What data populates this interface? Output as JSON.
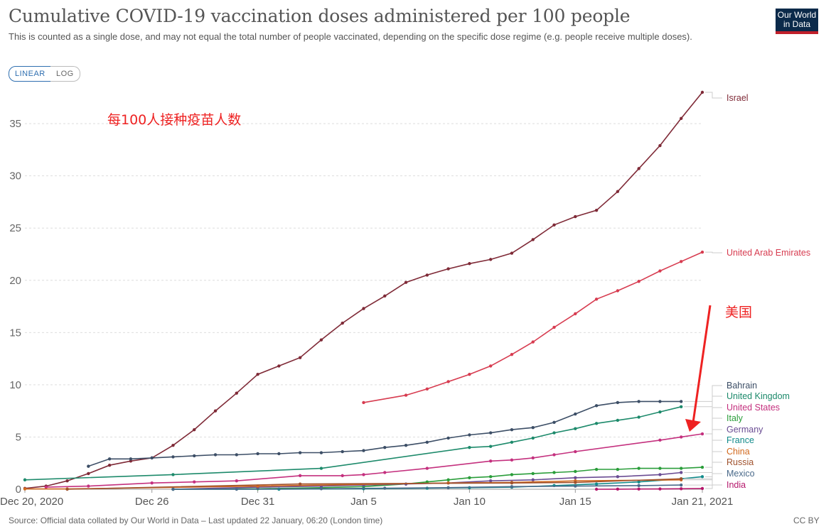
{
  "header": {
    "title": "Cumulative COVID-19 vaccination doses administered per 100 people",
    "subtitle": "This is counted as a single dose, and may not equal the total number of people vaccinated, depending on the specific dose regime (e.g. people receive multiple doses).",
    "logo_line1": "Our World",
    "logo_line2": "in Data",
    "logo_color": "#0b2a4a",
    "logo_accent": "#c0202a"
  },
  "controls": {
    "linear_label": "LINEAR",
    "log_label": "LOG",
    "selected": "LINEAR"
  },
  "footer": {
    "source": "Source: Official data collated by Our World in Data – Last updated 22 January, 06:20 (London time)",
    "license": "CC BY"
  },
  "annotations": {
    "doses_per_100_cn": "每100人接种疫苗人数",
    "usa_cn": "美国",
    "arrow_color": "#ee2222"
  },
  "chart_data": {
    "type": "line",
    "title": "Cumulative COVID-19 vaccination doses administered per 100 people",
    "xlabel": "",
    "ylabel": "",
    "xlim": [
      "2020-12-20",
      "2021-01-21"
    ],
    "ylim": [
      0,
      38
    ],
    "yticks": [
      0,
      5,
      10,
      15,
      20,
      25,
      30,
      35
    ],
    "xticks": [
      {
        "date": "2020-12-20",
        "label": "Dec 20, 2020"
      },
      {
        "date": "2020-12-26",
        "label": "Dec 26"
      },
      {
        "date": "2020-12-31",
        "label": "Dec 31"
      },
      {
        "date": "2021-01-05",
        "label": "Jan 5"
      },
      {
        "date": "2021-01-10",
        "label": "Jan 10"
      },
      {
        "date": "2021-01-15",
        "label": "Jan 15"
      },
      {
        "date": "2021-01-21",
        "label": "Jan 21, 2021"
      }
    ],
    "grid": true,
    "legend": "right-end labels",
    "series": [
      {
        "name": "Israel",
        "color": "#7f2a37",
        "points": [
          [
            "2020-12-20",
            0.08
          ],
          [
            "2020-12-21",
            0.3
          ],
          [
            "2020-12-22",
            0.8
          ],
          [
            "2020-12-23",
            1.5
          ],
          [
            "2020-12-24",
            2.3
          ],
          [
            "2020-12-25",
            2.7
          ],
          [
            "2020-12-26",
            3.0
          ],
          [
            "2020-12-27",
            4.2
          ],
          [
            "2020-12-28",
            5.7
          ],
          [
            "2020-12-29",
            7.5
          ],
          [
            "2020-12-30",
            9.2
          ],
          [
            "2020-12-31",
            11.0
          ],
          [
            "2021-01-01",
            11.8
          ],
          [
            "2021-01-02",
            12.6
          ],
          [
            "2021-01-03",
            14.3
          ],
          [
            "2021-01-04",
            15.9
          ],
          [
            "2021-01-05",
            17.3
          ],
          [
            "2021-01-06",
            18.5
          ],
          [
            "2021-01-07",
            19.8
          ],
          [
            "2021-01-08",
            20.5
          ],
          [
            "2021-01-09",
            21.1
          ],
          [
            "2021-01-10",
            21.6
          ],
          [
            "2021-01-11",
            22.0
          ],
          [
            "2021-01-12",
            22.6
          ],
          [
            "2021-01-13",
            23.9
          ],
          [
            "2021-01-14",
            25.3
          ],
          [
            "2021-01-15",
            26.1
          ],
          [
            "2021-01-16",
            26.7
          ],
          [
            "2021-01-17",
            28.5
          ],
          [
            "2021-01-18",
            30.7
          ],
          [
            "2021-01-19",
            32.9
          ],
          [
            "2021-01-20",
            35.5
          ],
          [
            "2021-01-21",
            38.0
          ]
        ]
      },
      {
        "name": "United Arab Emirates",
        "color": "#d73c50",
        "points": [
          [
            "2021-01-05",
            8.3
          ],
          [
            "2021-01-07",
            9.0
          ],
          [
            "2021-01-08",
            9.6
          ],
          [
            "2021-01-09",
            10.3
          ],
          [
            "2021-01-10",
            11.0
          ],
          [
            "2021-01-11",
            11.8
          ],
          [
            "2021-01-12",
            12.9
          ],
          [
            "2021-01-13",
            14.1
          ],
          [
            "2021-01-14",
            15.5
          ],
          [
            "2021-01-15",
            16.8
          ],
          [
            "2021-01-16",
            18.2
          ],
          [
            "2021-01-17",
            19.0
          ],
          [
            "2021-01-18",
            19.9
          ],
          [
            "2021-01-19",
            20.9
          ],
          [
            "2021-01-20",
            21.8
          ],
          [
            "2021-01-21",
            22.7
          ]
        ]
      },
      {
        "name": "Bahrain",
        "color": "#3c4e66",
        "points": [
          [
            "2020-12-23",
            2.2
          ],
          [
            "2020-12-24",
            2.9
          ],
          [
            "2020-12-25",
            2.9
          ],
          [
            "2020-12-26",
            3.0
          ],
          [
            "2020-12-27",
            3.1
          ],
          [
            "2020-12-28",
            3.2
          ],
          [
            "2020-12-29",
            3.3
          ],
          [
            "2020-12-30",
            3.3
          ],
          [
            "2020-12-31",
            3.4
          ],
          [
            "2021-01-01",
            3.4
          ],
          [
            "2021-01-02",
            3.5
          ],
          [
            "2021-01-03",
            3.5
          ],
          [
            "2021-01-04",
            3.6
          ],
          [
            "2021-01-05",
            3.7
          ],
          [
            "2021-01-06",
            4.0
          ],
          [
            "2021-01-07",
            4.2
          ],
          [
            "2021-01-08",
            4.5
          ],
          [
            "2021-01-09",
            4.9
          ],
          [
            "2021-01-10",
            5.2
          ],
          [
            "2021-01-11",
            5.4
          ],
          [
            "2021-01-12",
            5.7
          ],
          [
            "2021-01-13",
            5.9
          ],
          [
            "2021-01-14",
            6.4
          ],
          [
            "2021-01-15",
            7.2
          ],
          [
            "2021-01-16",
            8.0
          ],
          [
            "2021-01-17",
            8.3
          ],
          [
            "2021-01-18",
            8.4
          ],
          [
            "2021-01-19",
            8.4
          ],
          [
            "2021-01-20",
            8.4
          ]
        ]
      },
      {
        "name": "United Kingdom",
        "color": "#1d8a6b",
        "points": [
          [
            "2020-12-20",
            0.9
          ],
          [
            "2020-12-27",
            1.4
          ],
          [
            "2021-01-03",
            2.0
          ],
          [
            "2021-01-10",
            4.0
          ],
          [
            "2021-01-11",
            4.1
          ],
          [
            "2021-01-12",
            4.5
          ],
          [
            "2021-01-13",
            4.9
          ],
          [
            "2021-01-14",
            5.4
          ],
          [
            "2021-01-15",
            5.8
          ],
          [
            "2021-01-16",
            6.3
          ],
          [
            "2021-01-17",
            6.6
          ],
          [
            "2021-01-18",
            6.9
          ],
          [
            "2021-01-19",
            7.4
          ],
          [
            "2021-01-20",
            7.9
          ]
        ]
      },
      {
        "name": "United States",
        "color": "#c4307e",
        "points": [
          [
            "2020-12-21",
            0.2
          ],
          [
            "2020-12-23",
            0.3
          ],
          [
            "2020-12-26",
            0.6
          ],
          [
            "2020-12-28",
            0.7
          ],
          [
            "2020-12-30",
            0.8
          ],
          [
            "2021-01-02",
            1.3
          ],
          [
            "2021-01-04",
            1.3
          ],
          [
            "2021-01-05",
            1.4
          ],
          [
            "2021-01-06",
            1.6
          ],
          [
            "2021-01-08",
            2.0
          ],
          [
            "2021-01-11",
            2.7
          ],
          [
            "2021-01-12",
            2.8
          ],
          [
            "2021-01-13",
            3.0
          ],
          [
            "2021-01-14",
            3.3
          ],
          [
            "2021-01-15",
            3.6
          ],
          [
            "2021-01-19",
            4.7
          ],
          [
            "2021-01-20",
            5.0
          ],
          [
            "2021-01-21",
            5.3
          ]
        ]
      },
      {
        "name": "Italy",
        "color": "#2a9d3a",
        "points": [
          [
            "2020-12-27",
            0.0
          ],
          [
            "2020-12-31",
            0.05
          ],
          [
            "2021-01-03",
            0.15
          ],
          [
            "2021-01-05",
            0.25
          ],
          [
            "2021-01-07",
            0.5
          ],
          [
            "2021-01-08",
            0.7
          ],
          [
            "2021-01-09",
            0.9
          ],
          [
            "2021-01-10",
            1.1
          ],
          [
            "2021-01-11",
            1.2
          ],
          [
            "2021-01-12",
            1.4
          ],
          [
            "2021-01-13",
            1.5
          ],
          [
            "2021-01-14",
            1.6
          ],
          [
            "2021-01-15",
            1.7
          ],
          [
            "2021-01-16",
            1.9
          ],
          [
            "2021-01-17",
            1.9
          ],
          [
            "2021-01-18",
            2.0
          ],
          [
            "2021-01-19",
            2.0
          ],
          [
            "2021-01-20",
            2.0
          ],
          [
            "2021-01-21",
            2.1
          ]
        ]
      },
      {
        "name": "Germany",
        "color": "#6a4c93",
        "points": [
          [
            "2020-12-27",
            0.0
          ],
          [
            "2020-12-31",
            0.2
          ],
          [
            "2021-01-03",
            0.3
          ],
          [
            "2021-01-05",
            0.4
          ],
          [
            "2021-01-07",
            0.5
          ],
          [
            "2021-01-09",
            0.6
          ],
          [
            "2021-01-11",
            0.8
          ],
          [
            "2021-01-13",
            0.9
          ],
          [
            "2021-01-15",
            1.1
          ],
          [
            "2021-01-17",
            1.2
          ],
          [
            "2021-01-19",
            1.4
          ],
          [
            "2021-01-20",
            1.6
          ]
        ]
      },
      {
        "name": "France",
        "color": "#118a8a",
        "points": [
          [
            "2020-12-27",
            0.0
          ],
          [
            "2021-01-01",
            0.0
          ],
          [
            "2021-01-05",
            0.05
          ],
          [
            "2021-01-08",
            0.1
          ],
          [
            "2021-01-10",
            0.15
          ],
          [
            "2021-01-12",
            0.2
          ],
          [
            "2021-01-14",
            0.35
          ],
          [
            "2021-01-16",
            0.5
          ],
          [
            "2021-01-18",
            0.7
          ],
          [
            "2021-01-20",
            1.0
          ],
          [
            "2021-01-21",
            1.2
          ]
        ]
      },
      {
        "name": "China",
        "color": "#d2691e",
        "points": [
          [
            "2020-12-20",
            0.03
          ],
          [
            "2020-12-22",
            0.03
          ],
          [
            "2020-12-31",
            0.3
          ],
          [
            "2021-01-09",
            0.6
          ],
          [
            "2021-01-12",
            0.65
          ],
          [
            "2021-01-15",
            0.8
          ],
          [
            "2021-01-20",
            0.9
          ]
        ]
      },
      {
        "name": "Russia",
        "color": "#a0522d",
        "points": [
          [
            "2020-12-22",
            0.0
          ],
          [
            "2021-01-02",
            0.5
          ],
          [
            "2021-01-12",
            0.6
          ],
          [
            "2021-01-15",
            0.65
          ],
          [
            "2021-01-20",
            1.0
          ]
        ]
      },
      {
        "name": "Mexico",
        "color": "#4a6a8a",
        "points": [
          [
            "2020-12-27",
            0.0
          ],
          [
            "2020-12-30",
            0.0
          ],
          [
            "2021-01-03",
            0.05
          ],
          [
            "2021-01-06",
            0.1
          ],
          [
            "2021-01-09",
            0.15
          ],
          [
            "2021-01-12",
            0.25
          ],
          [
            "2021-01-15",
            0.3
          ],
          [
            "2021-01-18",
            0.35
          ],
          [
            "2021-01-20",
            0.4
          ]
        ]
      },
      {
        "name": "India",
        "color": "#b5166b",
        "points": [
          [
            "2021-01-16",
            0.0
          ],
          [
            "2021-01-17",
            0.01
          ],
          [
            "2021-01-18",
            0.02
          ],
          [
            "2021-01-19",
            0.03
          ],
          [
            "2021-01-20",
            0.05
          ],
          [
            "2021-01-21",
            0.07
          ]
        ]
      }
    ]
  }
}
